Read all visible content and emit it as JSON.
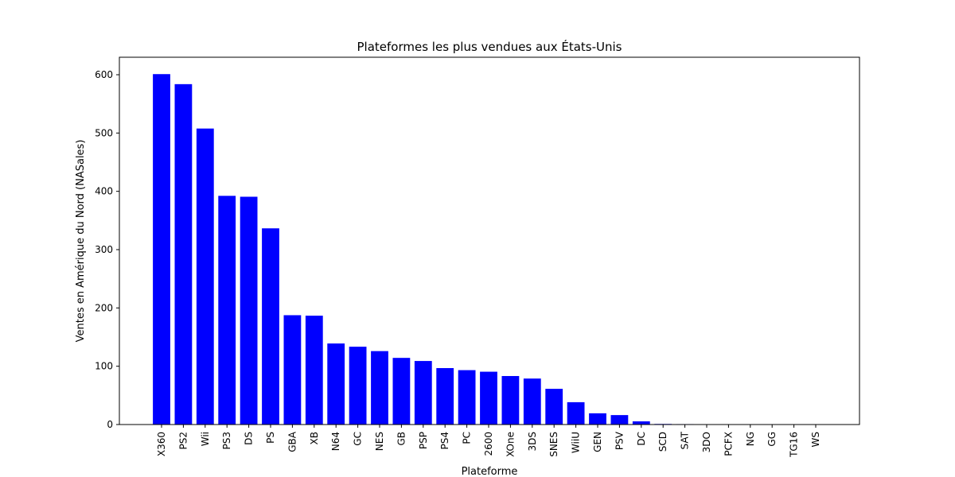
{
  "chart_data": {
    "type": "bar",
    "title": "Plateformes les plus vendues aux États-Unis",
    "xlabel": "Plateforme",
    "ylabel": "Ventes en Amérique du Nord (NASales)",
    "ylim": [
      0,
      630
    ],
    "yticks": [
      0,
      100,
      200,
      300,
      400,
      500,
      600
    ],
    "grid": false,
    "bar_color": "#0000ff",
    "categories": [
      "X360",
      "PS2",
      "Wii",
      "PS3",
      "DS",
      "PS",
      "GBA",
      "XB",
      "N64",
      "GC",
      "NES",
      "GB",
      "PSP",
      "PS4",
      "PC",
      "2600",
      "XOne",
      "3DS",
      "SNES",
      "WiiU",
      "GEN",
      "PSV",
      "DC",
      "SCD",
      "SAT",
      "3DO",
      "PCFX",
      "NG",
      "GG",
      "TG16",
      "WS"
    ],
    "values": [
      601.05,
      583.84,
      507.71,
      392.26,
      390.71,
      336.52,
      187.54,
      186.69,
      139.02,
      133.46,
      125.94,
      114.32,
      108.99,
      96.8,
      93.28,
      90.6,
      83.19,
      78.87,
      61.23,
      38.32,
      19.27,
      16.2,
      5.43,
      1.0,
      0.72,
      0.0,
      0.0,
      0.0,
      0.0,
      0.0,
      0.0
    ]
  }
}
